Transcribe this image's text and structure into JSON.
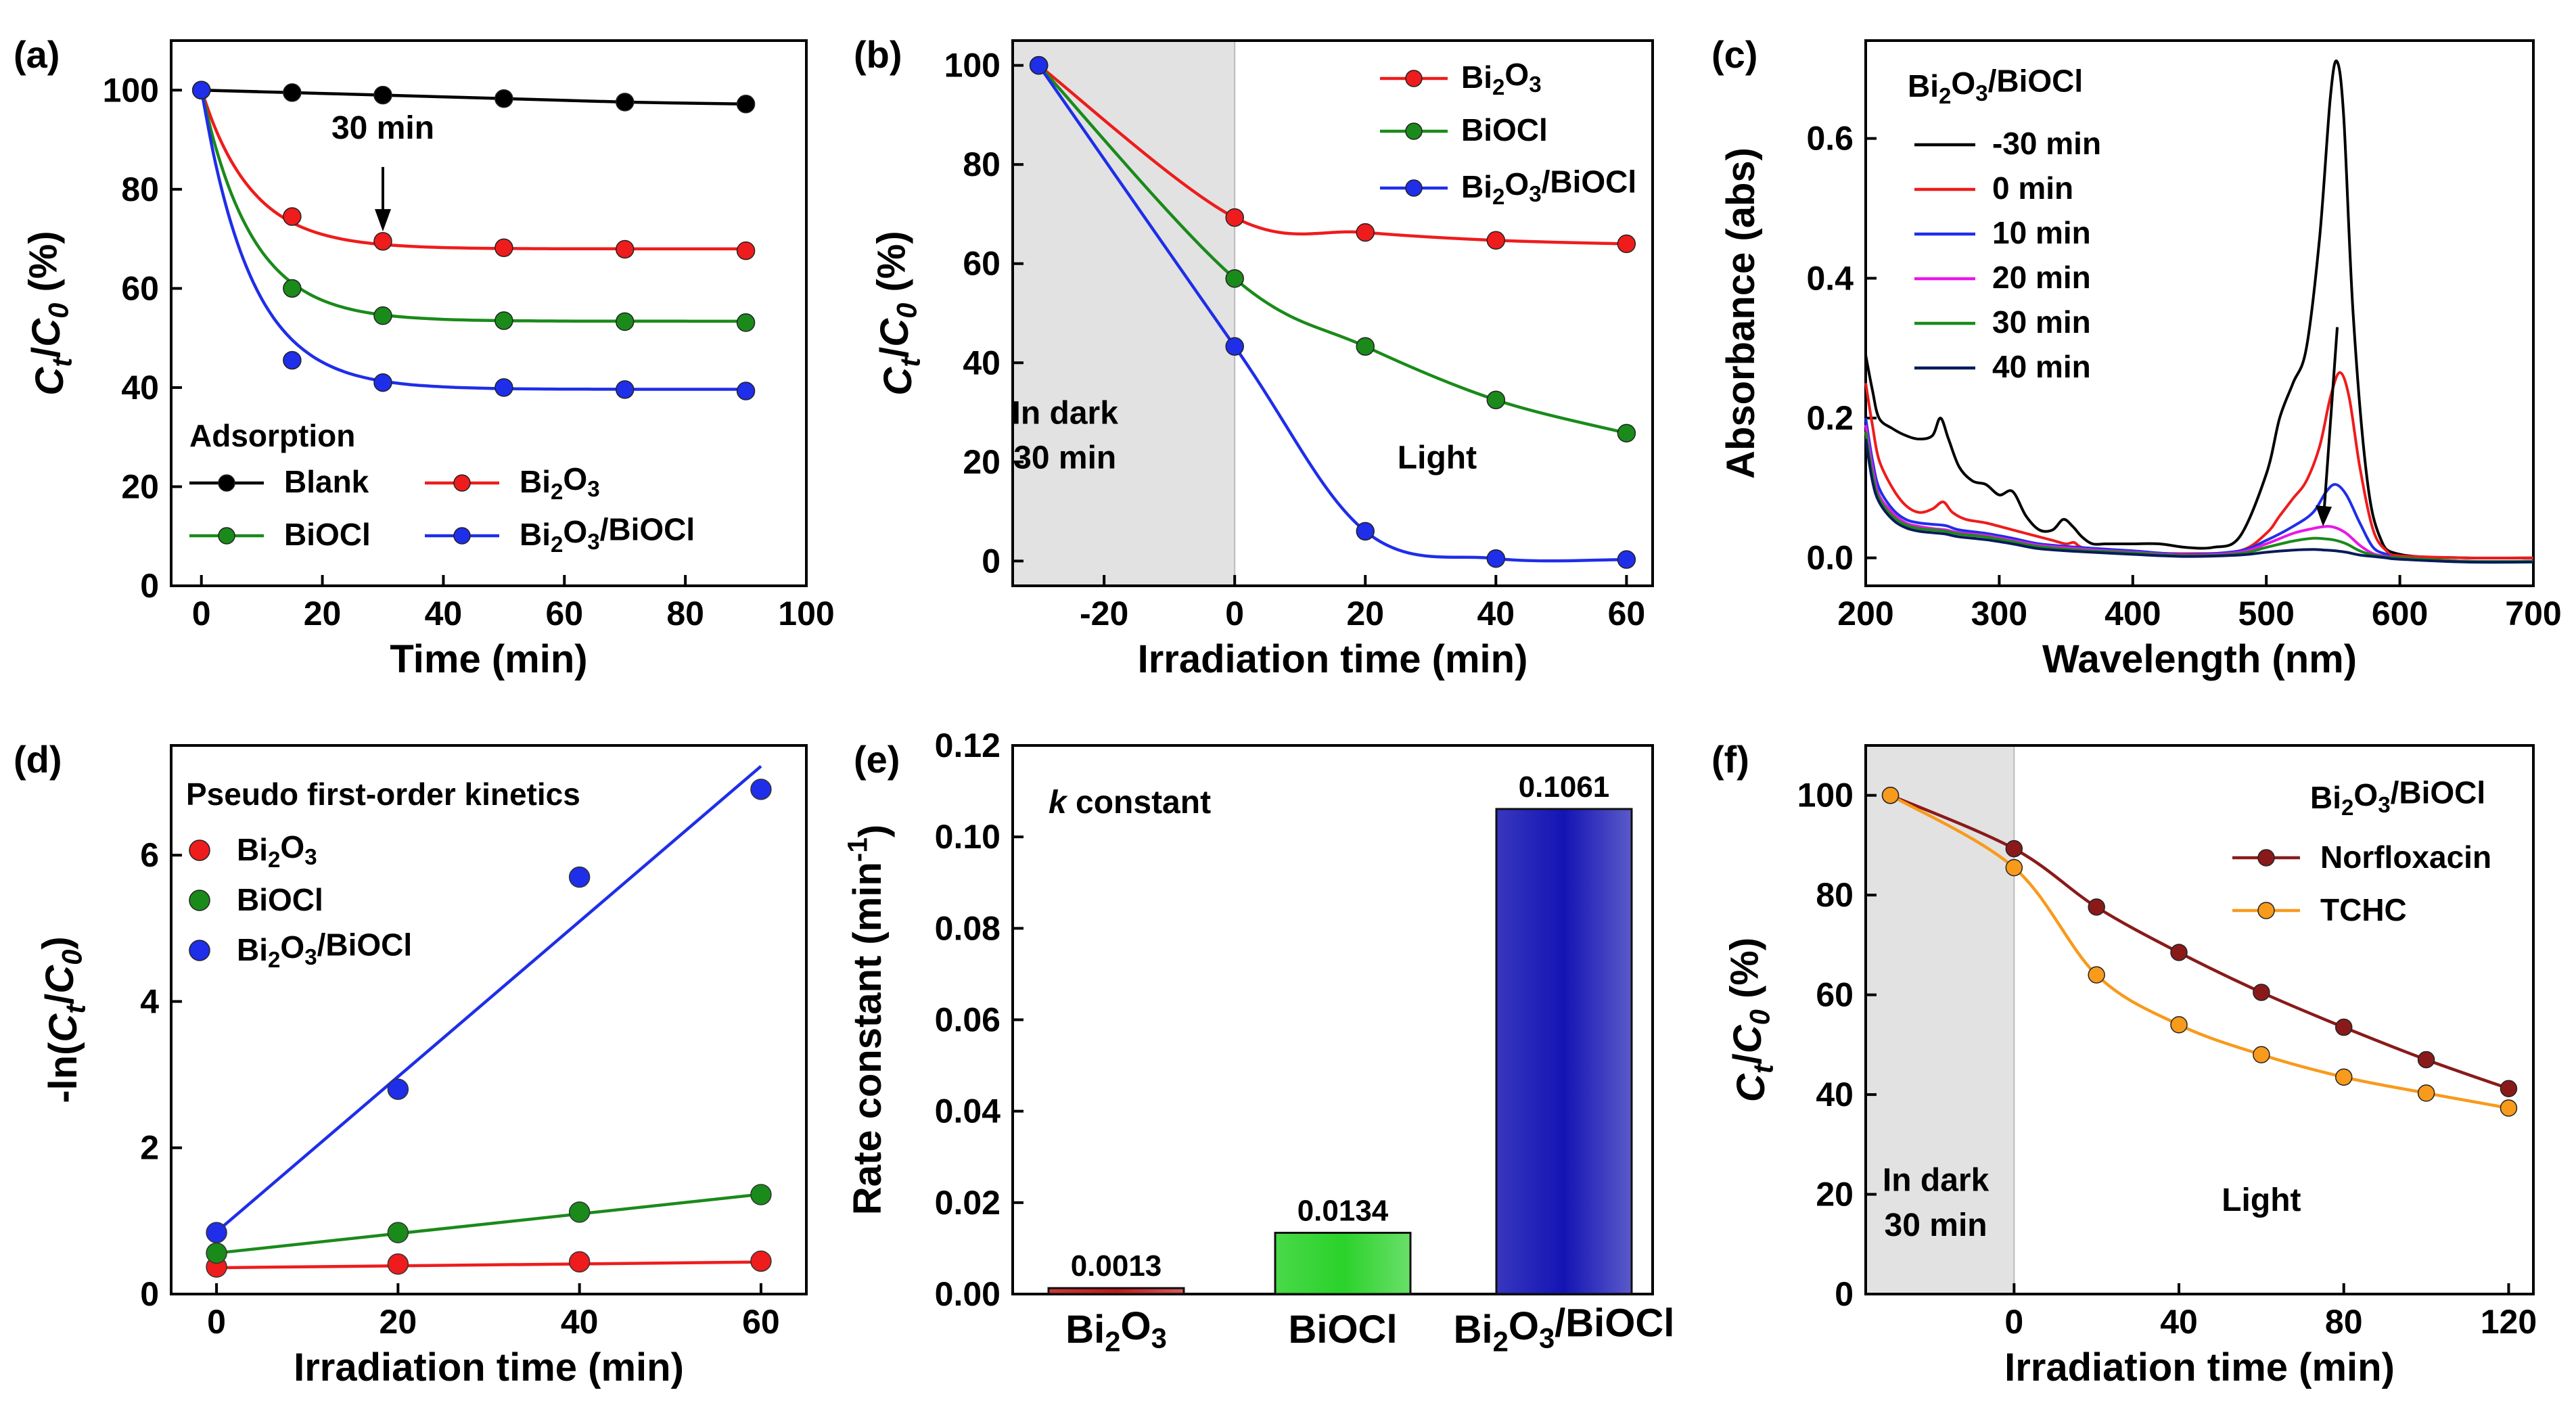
{
  "figure": {
    "panels": [
      "(a)",
      "(b)",
      "(c)",
      "(d)",
      "(e)",
      "(f)"
    ]
  },
  "chart_data": [
    {
      "id": "a",
      "type": "line",
      "panel_label": "(a)",
      "xlabel": "Time (min)",
      "ylabel": "C_t/C_0 (%)",
      "xlim": [
        -5,
        100
      ],
      "ylim": [
        0,
        110
      ],
      "xticks": [
        0,
        20,
        40,
        60,
        80,
        100
      ],
      "yticks": [
        0,
        20,
        40,
        60,
        80,
        100
      ],
      "legend_title": "Adsorption",
      "annotations": [
        {
          "text": "30 min",
          "x": 30,
          "y": 75
        }
      ],
      "series": [
        {
          "name": "Blank",
          "color": "#000000",
          "x": [
            0,
            15,
            30,
            50,
            70,
            90
          ],
          "y": [
            100,
            99.5,
            99,
            98.3,
            97.6,
            97.2
          ]
        },
        {
          "name": "Bi2O3",
          "color": "#ee1c1c",
          "x": [
            0,
            15,
            30,
            50,
            70,
            90
          ],
          "y": [
            100,
            74.5,
            69.5,
            68.2,
            67.9,
            67.6
          ]
        },
        {
          "name": "BiOCl",
          "color": "#1a8a1a",
          "x": [
            0,
            15,
            30,
            50,
            70,
            90
          ],
          "y": [
            100,
            60,
            54.5,
            53.5,
            53.3,
            53.1
          ]
        },
        {
          "name": "Bi2O3/BiOCl",
          "color": "#1f2ee8",
          "x": [
            0,
            15,
            30,
            50,
            70,
            90
          ],
          "y": [
            100,
            45.5,
            41,
            40,
            39.6,
            39.3
          ]
        }
      ]
    },
    {
      "id": "b",
      "type": "line",
      "panel_label": "(b)",
      "xlabel": "Irradiation time (min)",
      "ylabel": "C_t/C_0 (%)",
      "xlim": [
        -34,
        64
      ],
      "ylim": [
        -5,
        105
      ],
      "xticks": [
        -20,
        0,
        20,
        40,
        60
      ],
      "yticks": [
        0,
        20,
        40,
        60,
        80,
        100
      ],
      "shaded_region": {
        "x": [
          -34,
          0
        ]
      },
      "annotations": [
        {
          "text": "In dark",
          "x": -26,
          "y": 30
        },
        {
          "text": "30 min",
          "x": -26,
          "y": 21
        },
        {
          "text": "Light",
          "x": 31,
          "y": 21
        }
      ],
      "series": [
        {
          "name": "Bi2O3",
          "color": "#ee1c1c",
          "x": [
            -30,
            0,
            20,
            40,
            60
          ],
          "y": [
            100,
            69.3,
            66.3,
            64.7,
            64
          ]
        },
        {
          "name": "BiOCl",
          "color": "#1a8a1a",
          "x": [
            -30,
            0,
            20,
            40,
            60
          ],
          "y": [
            100,
            57,
            43.3,
            32.5,
            25.8
          ]
        },
        {
          "name": "Bi2O3/BiOCl",
          "color": "#1f2ee8",
          "x": [
            -30,
            0,
            20,
            40,
            60
          ],
          "y": [
            100,
            43.3,
            6,
            0.5,
            0.3
          ]
        }
      ]
    },
    {
      "id": "c",
      "type": "line",
      "panel_label": "(c)",
      "xlabel": "Wavelength (nm)",
      "ylabel": "Absorbance (abs)",
      "xlim": [
        200,
        700
      ],
      "ylim": [
        -0.04,
        0.74
      ],
      "xticks": [
        200,
        300,
        400,
        500,
        600,
        700
      ],
      "yticks": [
        0.0,
        0.2,
        0.4,
        0.6
      ],
      "ytick_labels": [
        "0.0",
        "0.2",
        "0.4",
        "0.6"
      ],
      "legend_title": "Bi2O3/BiOCl",
      "series": [
        {
          "name": "-30 min",
          "color": "#000000",
          "x": [
            200,
            205,
            210,
            220,
            230,
            240,
            250,
            256,
            262,
            270,
            280,
            290,
            300,
            310,
            320,
            330,
            340,
            348,
            355,
            362,
            370,
            380,
            400,
            420,
            440,
            460,
            480,
            500,
            510,
            520,
            530,
            540,
            548,
            553,
            558,
            565,
            575,
            585,
            600,
            650,
            700
          ],
          "y": [
            0.29,
            0.24,
            0.2,
            0.185,
            0.175,
            0.17,
            0.175,
            0.2,
            0.17,
            0.13,
            0.11,
            0.105,
            0.09,
            0.095,
            0.06,
            0.04,
            0.04,
            0.055,
            0.045,
            0.03,
            0.02,
            0.02,
            0.02,
            0.02,
            0.015,
            0.015,
            0.03,
            0.12,
            0.2,
            0.25,
            0.3,
            0.46,
            0.66,
            0.71,
            0.63,
            0.35,
            0.12,
            0.03,
            0.005,
            0.0,
            0.0
          ]
        },
        {
          "name": "0 min",
          "color": "#ee1c1c",
          "x": [
            200,
            205,
            210,
            220,
            230,
            240,
            250,
            258,
            265,
            275,
            290,
            310,
            320,
            330,
            340,
            350,
            356,
            362,
            380,
            400,
            440,
            480,
            500,
            510,
            520,
            530,
            540,
            548,
            555,
            562,
            570,
            580,
            590,
            600,
            650,
            700
          ],
          "y": [
            0.25,
            0.19,
            0.14,
            0.1,
            0.075,
            0.065,
            0.07,
            0.08,
            0.065,
            0.055,
            0.05,
            0.04,
            0.035,
            0.03,
            0.025,
            0.02,
            0.022,
            0.015,
            0.01,
            0.008,
            0.006,
            0.01,
            0.035,
            0.06,
            0.085,
            0.11,
            0.16,
            0.23,
            0.265,
            0.23,
            0.13,
            0.04,
            0.01,
            0.003,
            0.0,
            0.0
          ]
        },
        {
          "name": "10 min",
          "color": "#1f2ee8",
          "x": [
            200,
            205,
            210,
            220,
            230,
            240,
            250,
            260,
            270,
            290,
            310,
            330,
            360,
            400,
            440,
            480,
            500,
            520,
            535,
            545,
            552,
            560,
            570,
            580,
            590,
            600,
            650,
            700
          ],
          "y": [
            0.2,
            0.14,
            0.1,
            0.07,
            0.055,
            0.05,
            0.048,
            0.046,
            0.04,
            0.035,
            0.028,
            0.02,
            0.015,
            0.01,
            0.005,
            0.01,
            0.025,
            0.045,
            0.065,
            0.095,
            0.105,
            0.09,
            0.05,
            0.015,
            0.005,
            0.0,
            -0.005,
            -0.005
          ]
        },
        {
          "name": "20 min",
          "color": "#e619e6",
          "x": [
            200,
            205,
            210,
            220,
            230,
            240,
            250,
            260,
            270,
            290,
            310,
            330,
            360,
            400,
            440,
            480,
            500,
            520,
            535,
            545,
            552,
            560,
            570,
            580,
            590,
            600,
            650,
            700
          ],
          "y": [
            0.19,
            0.13,
            0.09,
            0.065,
            0.05,
            0.045,
            0.042,
            0.04,
            0.036,
            0.032,
            0.025,
            0.018,
            0.013,
            0.008,
            0.004,
            0.008,
            0.02,
            0.035,
            0.042,
            0.045,
            0.043,
            0.035,
            0.018,
            0.006,
            0.002,
            0.0,
            -0.005,
            -0.005
          ]
        },
        {
          "name": "30 min",
          "color": "#1a8a1a",
          "x": [
            200,
            205,
            210,
            220,
            230,
            240,
            250,
            260,
            270,
            290,
            310,
            330,
            360,
            400,
            440,
            480,
            500,
            520,
            535,
            545,
            552,
            560,
            570,
            580,
            590,
            600,
            650,
            700
          ],
          "y": [
            0.18,
            0.12,
            0.085,
            0.06,
            0.047,
            0.042,
            0.04,
            0.038,
            0.034,
            0.03,
            0.023,
            0.016,
            0.011,
            0.007,
            0.003,
            0.006,
            0.015,
            0.024,
            0.028,
            0.027,
            0.025,
            0.02,
            0.01,
            0.004,
            0.001,
            0.0,
            -0.005,
            -0.005
          ]
        },
        {
          "name": "40 min",
          "color": "#0a1a5a",
          "x": [
            200,
            205,
            210,
            220,
            230,
            240,
            250,
            260,
            270,
            290,
            310,
            330,
            360,
            400,
            440,
            480,
            500,
            520,
            535,
            545,
            552,
            560,
            570,
            580,
            590,
            600,
            650,
            700
          ],
          "y": [
            0.17,
            0.11,
            0.08,
            0.055,
            0.043,
            0.038,
            0.036,
            0.034,
            0.03,
            0.026,
            0.02,
            0.013,
            0.009,
            0.005,
            0.002,
            0.004,
            0.008,
            0.011,
            0.012,
            0.011,
            0.01,
            0.008,
            0.004,
            0.002,
            0.0,
            -0.002,
            -0.006,
            -0.006
          ]
        }
      ]
    },
    {
      "id": "d",
      "type": "scatter",
      "panel_label": "(d)",
      "xlabel": "Irradiation time (min)",
      "ylabel": "-ln(C_t/C_0)",
      "xlim": [
        -5,
        65
      ],
      "ylim": [
        0,
        7.5
      ],
      "xticks": [
        0,
        20,
        40,
        60
      ],
      "yticks": [
        0,
        2,
        4,
        6
      ],
      "legend_title": "Pseudo first-order kinetics",
      "series": [
        {
          "name": "Bi2O3",
          "color": "#ee1c1c",
          "x": [
            0,
            20,
            40,
            60
          ],
          "y": [
            0.37,
            0.41,
            0.44,
            0.45
          ],
          "fit": [
            0.36,
            0.0013
          ]
        },
        {
          "name": "BiOCl",
          "color": "#1a8a1a",
          "x": [
            0,
            20,
            40,
            60
          ],
          "y": [
            0.56,
            0.84,
            1.12,
            1.36
          ],
          "fit": [
            0.56,
            0.0134
          ]
        },
        {
          "name": "Bi2O3/BiOCl",
          "color": "#1f2ee8",
          "x": [
            0,
            20,
            40,
            60
          ],
          "y": [
            0.84,
            2.8,
            5.7,
            6.9
          ],
          "fit": [
            0.85,
            0.1061
          ]
        }
      ]
    },
    {
      "id": "e",
      "type": "bar",
      "panel_label": "(e)",
      "xlabel": "",
      "ylabel": "Rate constant (min-1)",
      "ylim": [
        0,
        0.12
      ],
      "yticks": [
        0.0,
        0.02,
        0.04,
        0.06,
        0.08,
        0.1,
        0.12
      ],
      "ytick_labels": [
        "0.00",
        "0.02",
        "0.04",
        "0.06",
        "0.08",
        "0.10",
        "0.12"
      ],
      "title_prefix": "k",
      "title_suffix": " constant",
      "categories": [
        "Bi2O3",
        "BiOCl",
        "Bi2O3/BiOCl"
      ],
      "values": [
        0.0013,
        0.0134,
        0.1061
      ],
      "value_labels": [
        "0.0013",
        "0.0134",
        "0.1061"
      ],
      "colors": [
        "#c01818",
        "#2ad22a",
        "#1414b4"
      ]
    },
    {
      "id": "f",
      "type": "line",
      "panel_label": "(f)",
      "xlabel": "Irradiation time (min)",
      "ylabel": "C_t/C_0 (%)",
      "xlim": [
        -36,
        126
      ],
      "ylim": [
        0,
        110
      ],
      "xticks": [
        0,
        40,
        80,
        120
      ],
      "yticks": [
        0,
        20,
        40,
        60,
        80,
        100
      ],
      "shaded_region": {
        "x": [
          -36,
          0
        ]
      },
      "legend_title": "Bi2O3/BiOCl",
      "annotations": [
        {
          "text": "In dark",
          "x": -19,
          "y": 23
        },
        {
          "text": "30 min",
          "x": -19,
          "y": 14
        },
        {
          "text": "Light",
          "x": 60,
          "y": 19
        }
      ],
      "series": [
        {
          "name": "Norfloxacin",
          "color": "#8a1a1a",
          "x": [
            -30,
            0,
            20,
            40,
            60,
            80,
            100,
            120
          ],
          "y": [
            100,
            89.3,
            77.6,
            68.5,
            60.5,
            53.5,
            47,
            41.2
          ]
        },
        {
          "name": "TCHC",
          "color": "#f89a1c",
          "x": [
            -30,
            0,
            20,
            40,
            60,
            80,
            100,
            120
          ],
          "y": [
            100,
            85.5,
            64,
            54,
            48,
            43.5,
            40.3,
            37.3
          ]
        }
      ]
    }
  ]
}
